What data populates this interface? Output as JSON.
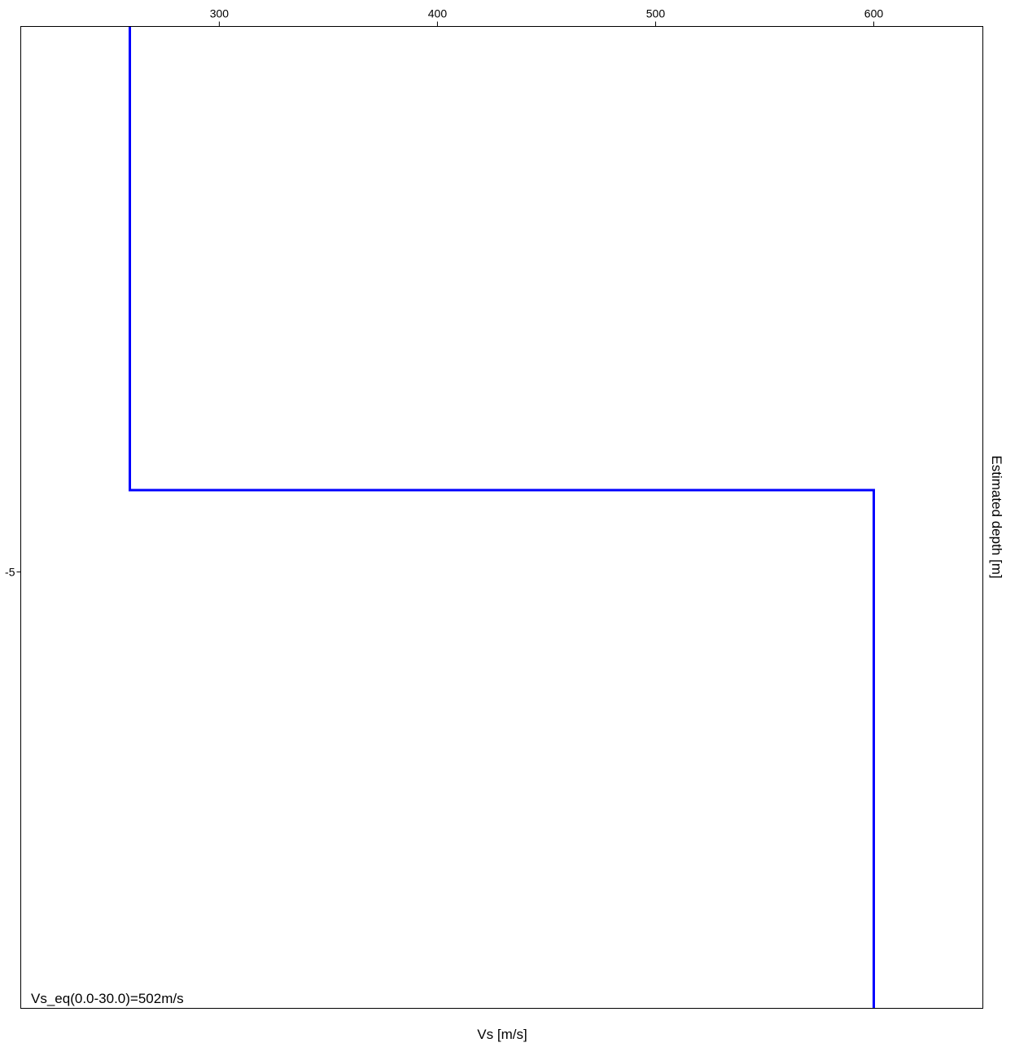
{
  "chart_data": {
    "type": "line",
    "xlabel": "Vs [m/s]",
    "ylabel": "Estimated depth [m]",
    "x_axis_position": "top",
    "xlim": [
      209,
      650
    ],
    "ylim": [
      0,
      -9
    ],
    "x_ticks": [
      300,
      400,
      500,
      600
    ],
    "y_ticks": [
      -5
    ],
    "x_tick_labels": [
      "300",
      "400",
      "500",
      "600"
    ],
    "y_tick_labels": [
      "-5"
    ],
    "grid": false,
    "series": [
      {
        "color": "#0000ff",
        "step_profile": [
          {
            "x": 259,
            "y": 0
          },
          {
            "x": 259,
            "y": -4.25
          },
          {
            "x": 600,
            "y": -4.25
          },
          {
            "x": 600,
            "y": -9
          }
        ]
      }
    ],
    "annotation": "Vs_eq(0.0-30.0)=502m/s"
  }
}
